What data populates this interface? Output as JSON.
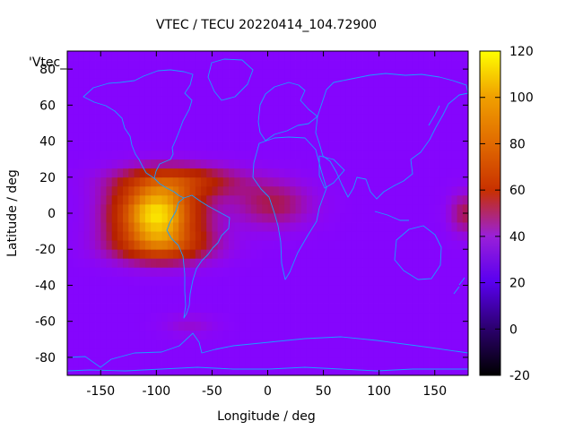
{
  "chart_data": {
    "type": "heatmap",
    "title": "VTEC / TECU 20220414_104.72900",
    "xlabel": "Longitude / deg",
    "ylabel": "Latitude / deg",
    "series_label": "'Vtec_",
    "xlim": [
      -180,
      180
    ],
    "ylim": [
      -90,
      90
    ],
    "x_ticks": [
      -150,
      -100,
      -50,
      0,
      50,
      100,
      150
    ],
    "y_ticks": [
      -80,
      -60,
      -40,
      -20,
      0,
      20,
      40,
      60,
      80
    ],
    "x_tick_labels": [
      "-150",
      "-100",
      "-50",
      "0",
      "50",
      "100",
      "150"
    ],
    "y_tick_labels": [
      "-80",
      "-60",
      "-40",
      "-20",
      "0",
      "20",
      "40",
      "60",
      "80"
    ],
    "colorbar": {
      "range": [
        -20,
        120
      ],
      "ticks": [
        -20,
        0,
        20,
        40,
        60,
        80,
        100,
        120
      ],
      "tick_labels": [
        "-20",
        "0",
        "20",
        "40",
        "60",
        "80",
        "100",
        "120"
      ]
    },
    "grid": false,
    "background_value": 18,
    "features": [
      {
        "name": "equatorial-anomaly-americas",
        "lon": -100,
        "lat": 0,
        "peak": 95,
        "lon_sigma": 38,
        "lat_sigma": 16
      },
      {
        "name": "anomaly-south-branch",
        "lon": -95,
        "lat": -18,
        "peak": 45,
        "lon_sigma": 45,
        "lat_sigma": 10
      },
      {
        "name": "anomaly-north-branch",
        "lon": -80,
        "lat": 18,
        "peak": 40,
        "lon_sigma": 55,
        "lat_sigma": 9
      },
      {
        "name": "atlantic-africa-extension",
        "lon": 5,
        "lat": 5,
        "peak": 25,
        "lon_sigma": 35,
        "lat_sigma": 13
      },
      {
        "name": "wrap-east-edge",
        "lon": 178,
        "lat": 0,
        "peak": 25,
        "lon_sigma": 15,
        "lat_sigma": 12
      },
      {
        "name": "south-high-lat-spot",
        "lon": -70,
        "lat": -62,
        "peak": 10,
        "lon_sigma": 25,
        "lat_sigma": 6
      }
    ]
  }
}
